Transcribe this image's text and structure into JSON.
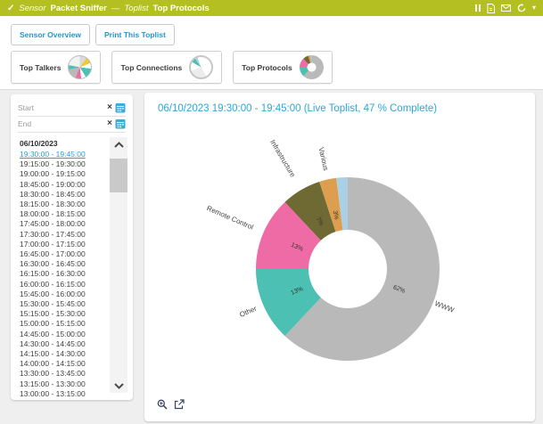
{
  "header": {
    "kind_label": "Sensor",
    "sensor_name": "Packet Sniffer",
    "separator": "—",
    "toplist_label": "Toplist",
    "toplist_name": "Top Protocols"
  },
  "toolbar": {
    "sensor_overview_label": "Sensor Overview",
    "print_toplist_label": "Print This Toplist"
  },
  "toplist_tabs": [
    {
      "label": "Top Talkers"
    },
    {
      "label": "Top Connections"
    },
    {
      "label": "Top Protocols"
    }
  ],
  "filter": {
    "start_placeholder": "Start",
    "end_placeholder": "End"
  },
  "time_list": {
    "date_header": "06/10/2023",
    "selected": "19:30:00 - 19:45:00",
    "items": [
      "19:30:00 - 19:45:00",
      "19:15:00 - 19:30:00",
      "19:00:00 - 19:15:00",
      "18:45:00 - 19:00:00",
      "18:30:00 - 18:45:00",
      "18:15:00 - 18:30:00",
      "18:00:00 - 18:15:00",
      "17:45:00 - 18:00:00",
      "17:30:00 - 17:45:00",
      "17:00:00 - 17:15:00",
      "16:45:00 - 17:00:00",
      "16:30:00 - 16:45:00",
      "16:15:00 - 16:30:00",
      "16:00:00 - 16:15:00",
      "15:45:00 - 16:00:00",
      "15:30:00 - 15:45:00",
      "15:15:00 - 15:30:00",
      "15:00:00 - 15:15:00",
      "14:45:00 - 15:00:00",
      "14:30:00 - 14:45:00",
      "14:15:00 - 14:30:00",
      "14:00:00 - 14:15:00",
      "13:30:00 - 13:45:00",
      "13:15:00 - 13:30:00",
      "13:00:00 - 13:15:00"
    ]
  },
  "main": {
    "title": "06/10/2023 19:30:00 - 19:45:00 (Live Toplist, 47 % Complete)"
  },
  "icons": {
    "check_glyph": "✓",
    "clear_glyph": "×",
    "caret_glyph": "▾"
  },
  "colors": {
    "header_bg": "#b4c021",
    "accent_blue": "#2ea6d8"
  },
  "chart_data": {
    "type": "pie",
    "title": "06/10/2023 19:30:00 - 19:45:00 (Live Toplist, 47 % Complete)",
    "donut": true,
    "start_angle_deg": 0,
    "direction": "clockwise",
    "unit": "%",
    "slices": [
      {
        "label": "WWW",
        "pct": 62,
        "color": "#b9b9b9"
      },
      {
        "label": "Other",
        "pct": 13,
        "color": "#4cc0b2"
      },
      {
        "label": "Remote Control",
        "pct": 13,
        "color": "#ef6ba6"
      },
      {
        "label": "Infrastructure",
        "pct": 7,
        "color": "#6f6a33"
      },
      {
        "label": "Various",
        "pct": 3,
        "color": "#dd9e4f"
      },
      {
        "label": "",
        "pct": 2,
        "color": "#abcfe3"
      }
    ]
  }
}
